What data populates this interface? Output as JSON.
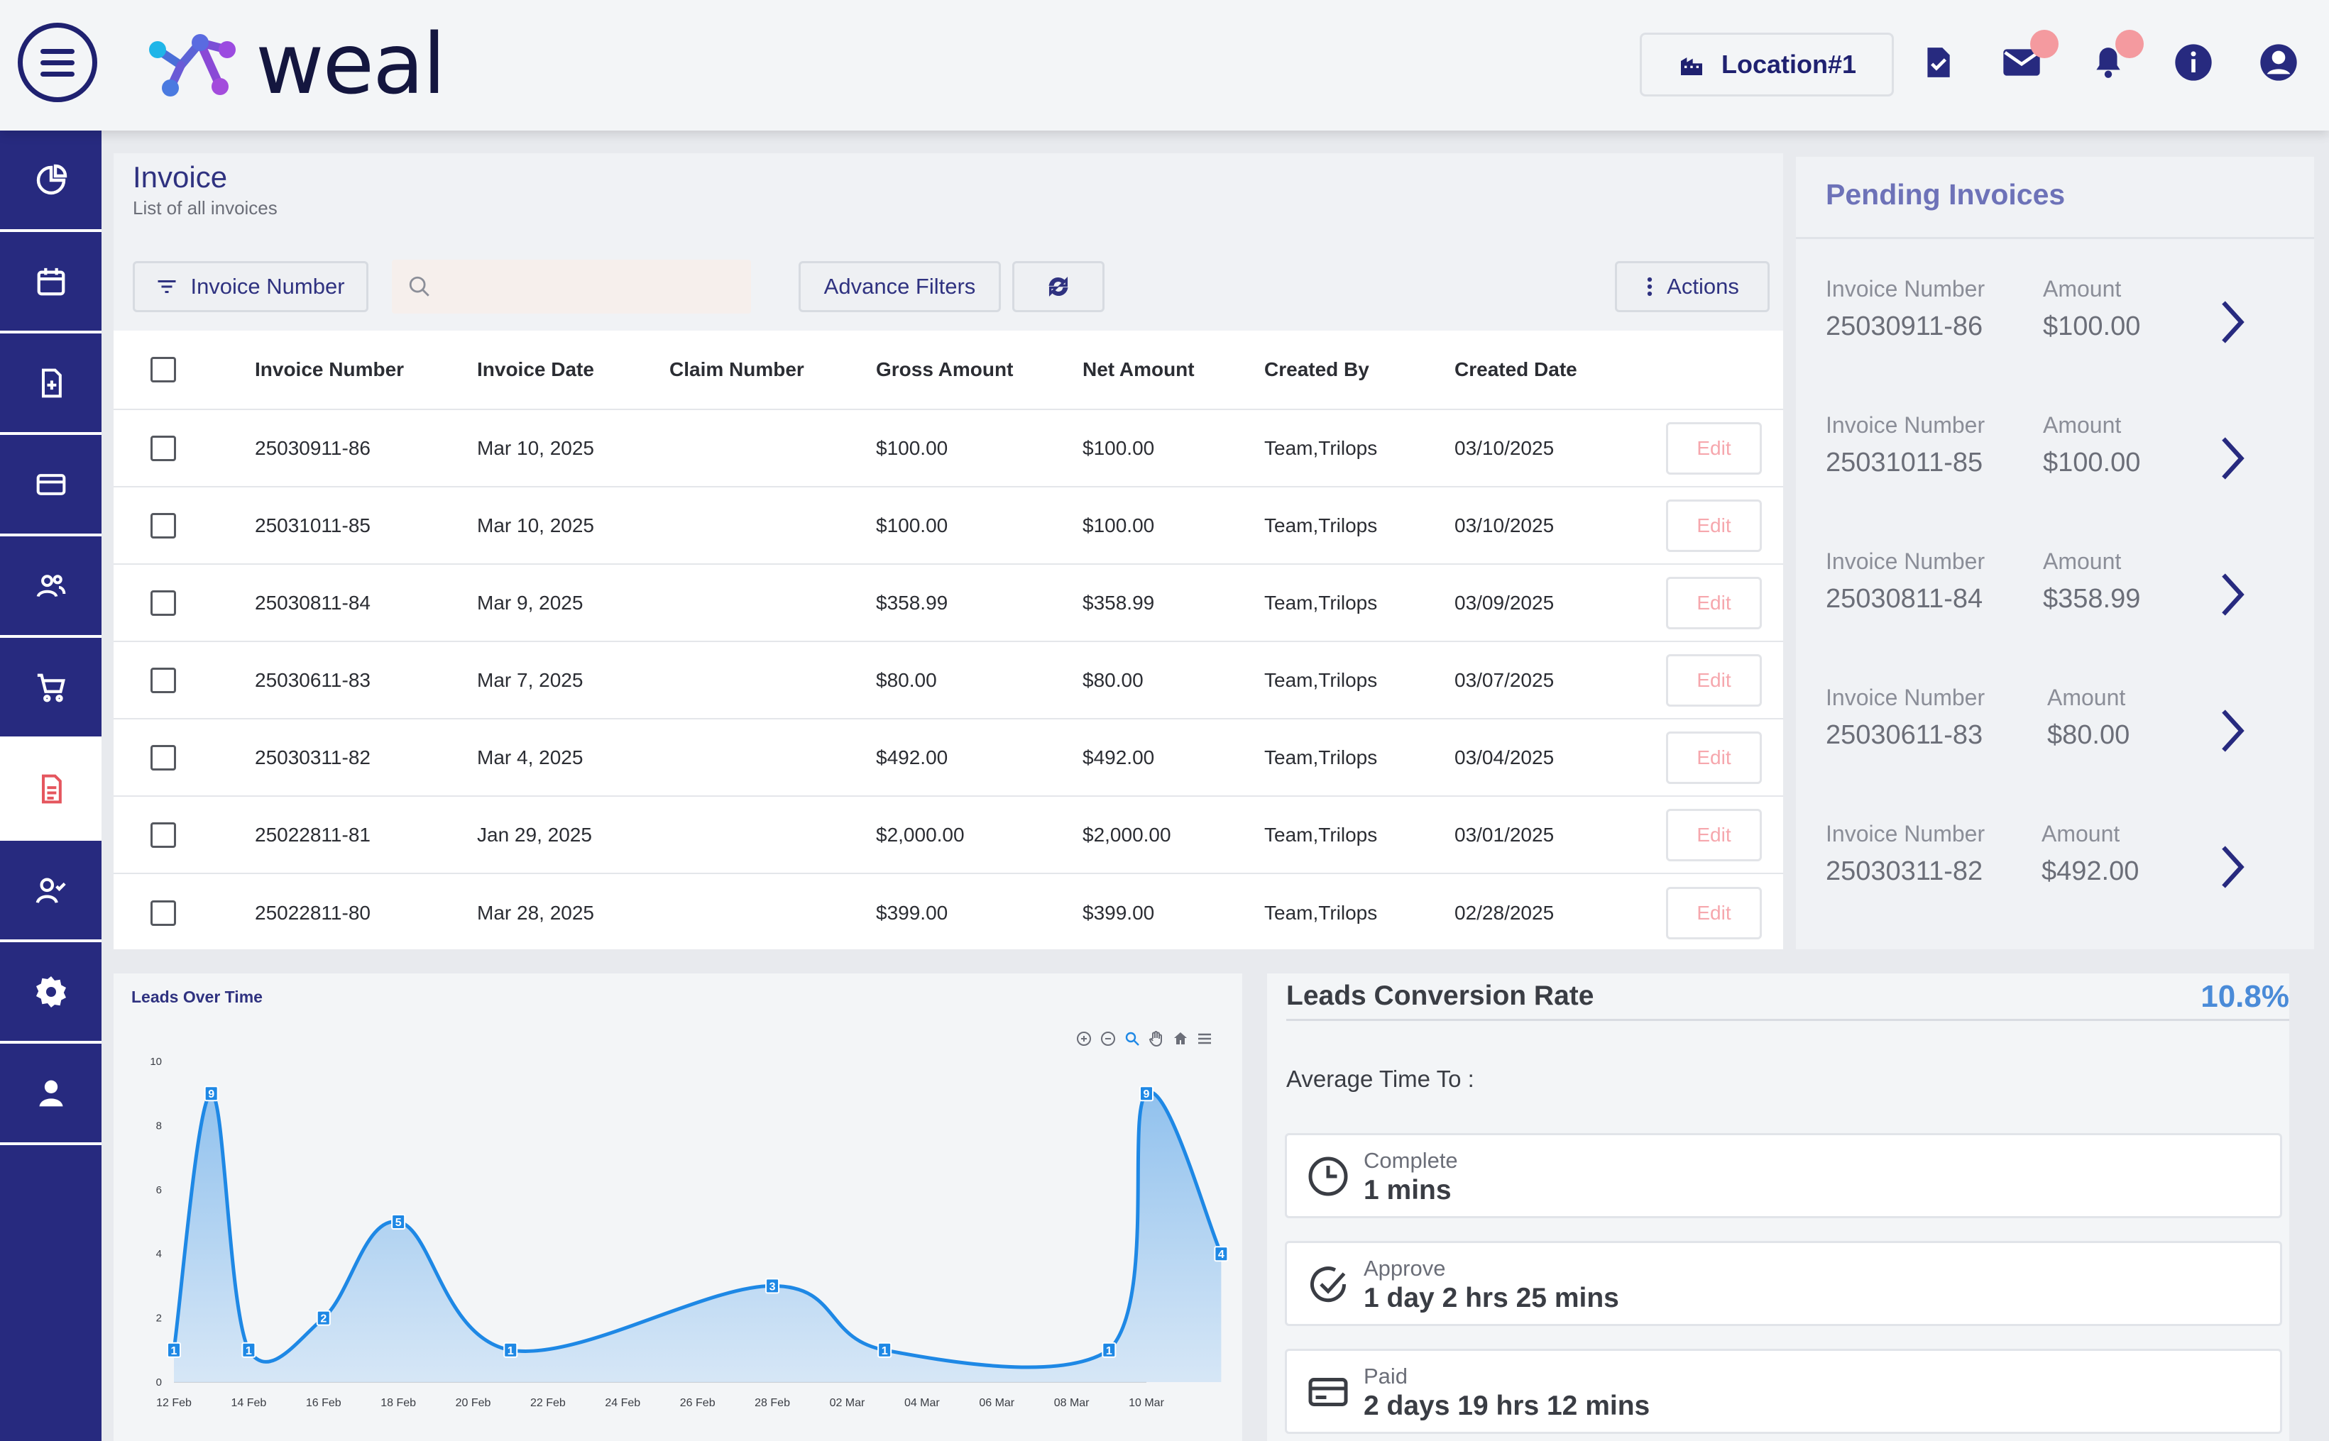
{
  "header": {
    "brand": "weal",
    "location_label": "Location#1"
  },
  "sidebar": {
    "items": [
      "dashboard",
      "calendar",
      "document",
      "billing",
      "contacts",
      "cart",
      "invoice",
      "user-check",
      "settings",
      "profile"
    ]
  },
  "invoice": {
    "title": "Invoice",
    "subtitle": "List of all invoices",
    "filter_label": "Invoice Number",
    "search_placeholder": "",
    "advance_filters_label": "Advance Filters",
    "actions_label": "Actions",
    "columns": [
      "Invoice Number",
      "Invoice Date",
      "Claim Number",
      "Gross Amount",
      "Net Amount",
      "Created By",
      "Created Date"
    ],
    "edit_label": "Edit",
    "rows": [
      {
        "number": "25030911-86",
        "date": "Mar 10, 2025",
        "claim": "",
        "gross": "$100.00",
        "net": "$100.00",
        "created_by": "Team,Trilops",
        "created_date": "03/10/2025"
      },
      {
        "number": "25031011-85",
        "date": "Mar 10, 2025",
        "claim": "",
        "gross": "$100.00",
        "net": "$100.00",
        "created_by": "Team,Trilops",
        "created_date": "03/10/2025"
      },
      {
        "number": "25030811-84",
        "date": "Mar 9, 2025",
        "claim": "",
        "gross": "$358.99",
        "net": "$358.99",
        "created_by": "Team,Trilops",
        "created_date": "03/09/2025"
      },
      {
        "number": "25030611-83",
        "date": "Mar 7, 2025",
        "claim": "",
        "gross": "$80.00",
        "net": "$80.00",
        "created_by": "Team,Trilops",
        "created_date": "03/07/2025"
      },
      {
        "number": "25030311-82",
        "date": "Mar 4, 2025",
        "claim": "",
        "gross": "$492.00",
        "net": "$492.00",
        "created_by": "Team,Trilops",
        "created_date": "03/04/2025"
      },
      {
        "number": "25022811-81",
        "date": "Jan 29, 2025",
        "claim": "",
        "gross": "$2,000.00",
        "net": "$2,000.00",
        "created_by": "Team,Trilops",
        "created_date": "03/01/2025"
      },
      {
        "number": "25022811-80",
        "date": "Mar 28, 2025",
        "claim": "",
        "gross": "$399.00",
        "net": "$399.00",
        "created_by": "Team,Trilops",
        "created_date": "02/28/2025"
      }
    ]
  },
  "pending": {
    "title": "Pending Invoices",
    "number_label": "Invoice Number",
    "amount_label": "Amount",
    "items": [
      {
        "number": "25030911-86",
        "amount": "$100.00"
      },
      {
        "number": "25031011-85",
        "amount": "$100.00"
      },
      {
        "number": "25030811-84",
        "amount": "$358.99"
      },
      {
        "number": "25030611-83",
        "amount": "$80.00"
      },
      {
        "number": "25030311-82",
        "amount": "$492.00"
      }
    ]
  },
  "chart_data": {
    "type": "area",
    "title": "Leads Over Time",
    "xlabel": "",
    "ylabel": "",
    "ylim": [
      0,
      10
    ],
    "yticks": [
      0,
      2,
      4,
      6,
      8,
      10
    ],
    "xticks": [
      "12 Feb",
      "14 Feb",
      "16 Feb",
      "18 Feb",
      "20 Feb",
      "22 Feb",
      "24 Feb",
      "26 Feb",
      "28 Feb",
      "02 Mar",
      "04 Mar",
      "06 Mar",
      "08 Mar",
      "10 Mar"
    ],
    "points": [
      {
        "x": "12 Feb",
        "y": 1
      },
      {
        "x": "13 Feb",
        "y": 9
      },
      {
        "x": "14 Feb",
        "y": 1
      },
      {
        "x": "16 Feb",
        "y": 2
      },
      {
        "x": "18 Feb",
        "y": 5
      },
      {
        "x": "21 Feb",
        "y": 1
      },
      {
        "x": "28 Feb",
        "y": 3
      },
      {
        "x": "03 Mar",
        "y": 1
      },
      {
        "x": "09 Mar",
        "y": 1
      },
      {
        "x": "10 Mar",
        "y": 9
      },
      {
        "x": "12 Mar",
        "y": 4
      }
    ],
    "grid": false,
    "color": "#1e88e5"
  },
  "leads": {
    "title": "Leads Conversion Rate",
    "rate": "10.8%",
    "avg_title": "Average Time To :",
    "items": [
      {
        "label": "Complete",
        "value": "1 mins"
      },
      {
        "label": "Approve",
        "value": "1 day 2 hrs 25 mins"
      },
      {
        "label": "Paid",
        "value": "2 days 19 hrs 12 mins"
      }
    ]
  }
}
